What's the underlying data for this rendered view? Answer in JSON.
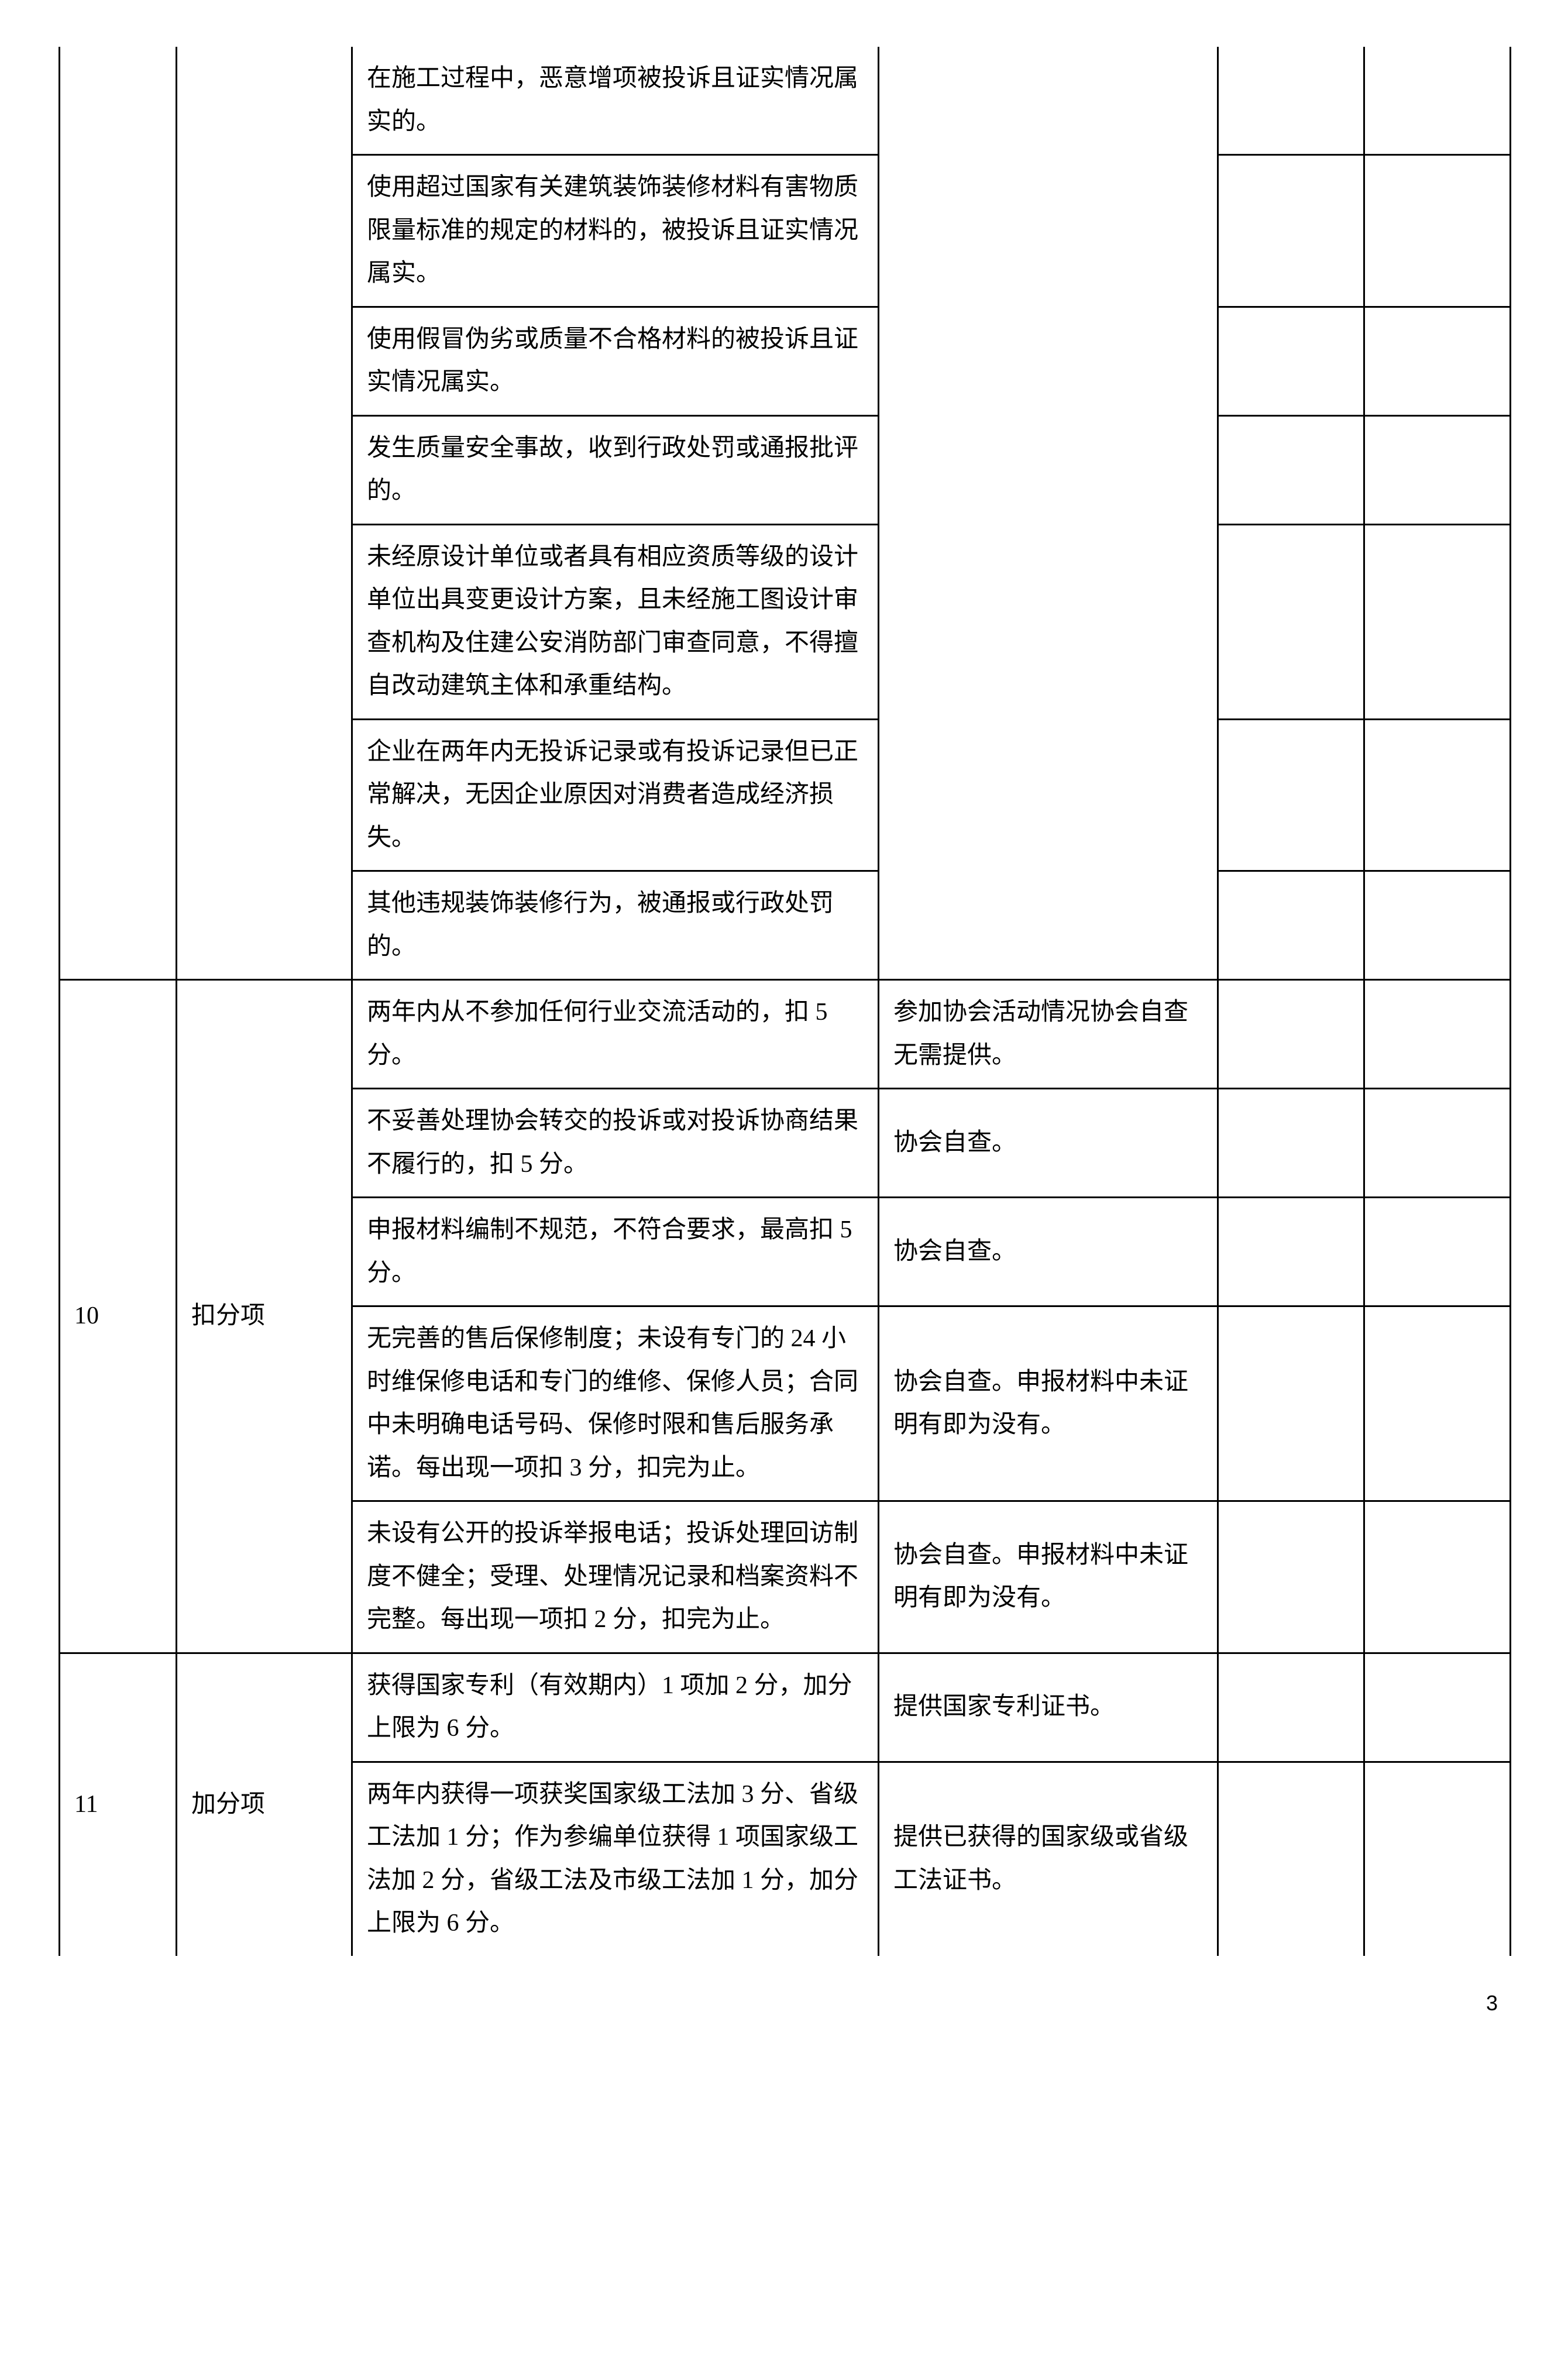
{
  "section9": {
    "rows": [
      {
        "desc": "在施工过程中，恶意增项被投诉且证实情况属实的。",
        "note": ""
      },
      {
        "desc": "使用超过国家有关建筑装饰装修材料有害物质限量标准的规定的材料的，被投诉且证实情况属实。",
        "note": ""
      },
      {
        "desc": "使用假冒伪劣或质量不合格材料的被投诉且证实情况属实。",
        "note": ""
      },
      {
        "desc": "发生质量安全事故，收到行政处罚或通报批评的。",
        "note": ""
      },
      {
        "desc": "未经原设计单位或者具有相应资质等级的设计单位出具变更设计方案，且未经施工图设计审查机构及住建公安消防部门审查同意，不得擅自改动建筑主体和承重结构。",
        "note": ""
      },
      {
        "desc": "企业在两年内无投诉记录或有投诉记录但已正常解决，无因企业原因对消费者造成经济损失。",
        "note": ""
      },
      {
        "desc": "其他违规装饰装修行为，被通报或行政处罚的。",
        "note": ""
      }
    ]
  },
  "section10": {
    "num": "10",
    "category": "扣分项",
    "rows": [
      {
        "desc": "两年内从不参加任何行业交流活动的，扣 5 分。",
        "note": "参加协会活动情况协会自查无需提供。"
      },
      {
        "desc": "不妥善处理协会转交的投诉或对投诉协商结果不履行的，扣 5 分。",
        "note": "协会自查。"
      },
      {
        "desc": "申报材料编制不规范，不符合要求，最高扣 5 分。",
        "note": "协会自查。"
      },
      {
        "desc": "无完善的售后保修制度；未设有专门的 24 小时维保修电话和专门的维修、保修人员；合同中未明确电话号码、保修时限和售后服务承诺。每出现一项扣 3 分，扣完为止。",
        "note": "协会自查。申报材料中未证明有即为没有。"
      },
      {
        "desc": "未设有公开的投诉举报电话；投诉处理回访制度不健全；受理、处理情况记录和档案资料不完整。每出现一项扣 2 分，扣完为止。",
        "note": "协会自查。申报材料中未证明有即为没有。"
      }
    ]
  },
  "section11": {
    "num": "11",
    "category": "加分项",
    "rows": [
      {
        "desc": "获得国家专利（有效期内）1 项加 2 分，加分上限为 6 分。",
        "note": "提供国家专利证书。"
      },
      {
        "desc": "两年内获得一项获奖国家级工法加 3 分、省级工法加 1 分；作为参编单位获得 1 项国家级工法加 2 分，省级工法及市级工法加 1 分，加分上限为 6 分。",
        "note": "提供已获得的国家级或省级工法证书。"
      }
    ]
  },
  "pageNumber": "3"
}
